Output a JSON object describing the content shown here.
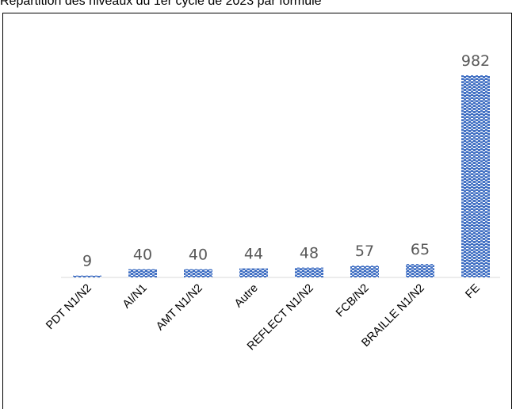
{
  "title": "Répartition des niveaux du 1er cycle de 2023 par formule",
  "chart_data": {
    "type": "bar",
    "categories": [
      "PDT N1/N2",
      "AI/N1",
      "AMT N1/N2",
      "Autre",
      "REFLECT N1/N2",
      "FCB/N2",
      "BRAILLE N1/N2",
      "FE"
    ],
    "values": [
      9,
      40,
      40,
      44,
      48,
      57,
      65,
      982
    ],
    "value_labels": [
      "9",
      "40",
      "40",
      "44",
      "48",
      "57",
      "65",
      "982"
    ],
    "ylim": [
      0,
      982
    ],
    "grid": false,
    "legend": "none",
    "bar_color": "#4472c4",
    "bar_pattern": "small-checker",
    "value_label_color": "#595959"
  }
}
